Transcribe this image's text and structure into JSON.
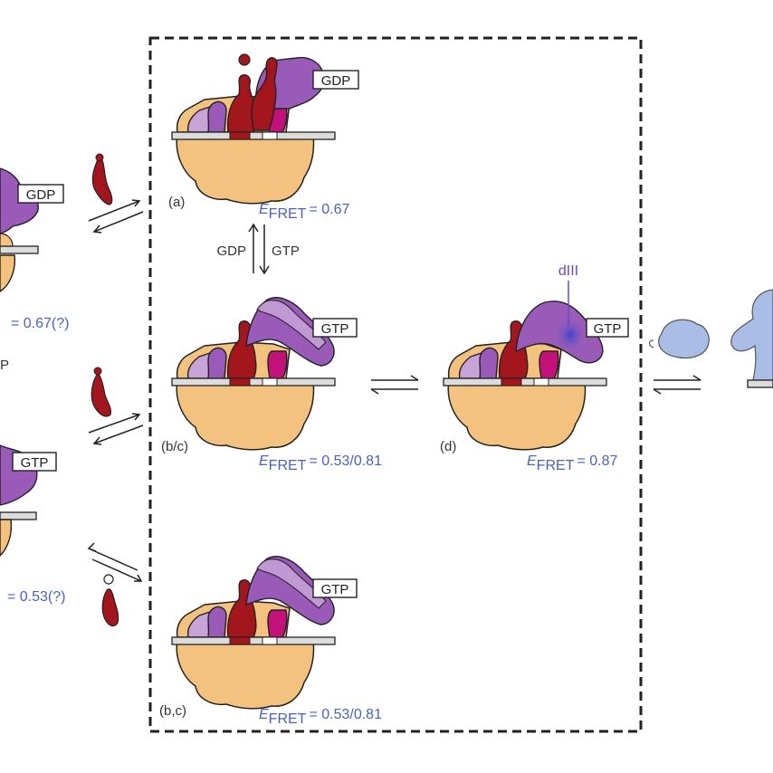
{
  "colors": {
    "body": "#f2c27e",
    "purple": "#9a5bb8",
    "purple_light": "#c7a3d8",
    "red": "#a3161d",
    "magenta": "#c2127a",
    "blue_text": "#4a62b8",
    "ef_g": "#a9bde6"
  },
  "left_column": {
    "top_tag": "GDP",
    "top_fret": "= 0.67(?)",
    "mid_cut": "P",
    "bottom_tag": "GTP",
    "bottom_fret": "= 0.53(?)"
  },
  "state_a": {
    "label": "(a)",
    "tag": "GDP",
    "fret_value": "= 0.67"
  },
  "transition": {
    "left": "GDP",
    "right": "GTP"
  },
  "state_bc1": {
    "label": "(b/c)",
    "tag": "GTP",
    "fret_value": "= 0.53/0.81"
  },
  "state_d": {
    "label": "(d)",
    "tag": "GTP",
    "fret_value": "= 0.87",
    "domain": "dIII"
  },
  "state_bc2": {
    "label": "(b,c)",
    "tag": "GTP",
    "fret_value": "= 0.53/0.81"
  },
  "fret_e": "E",
  "fret_sub": "FRET"
}
